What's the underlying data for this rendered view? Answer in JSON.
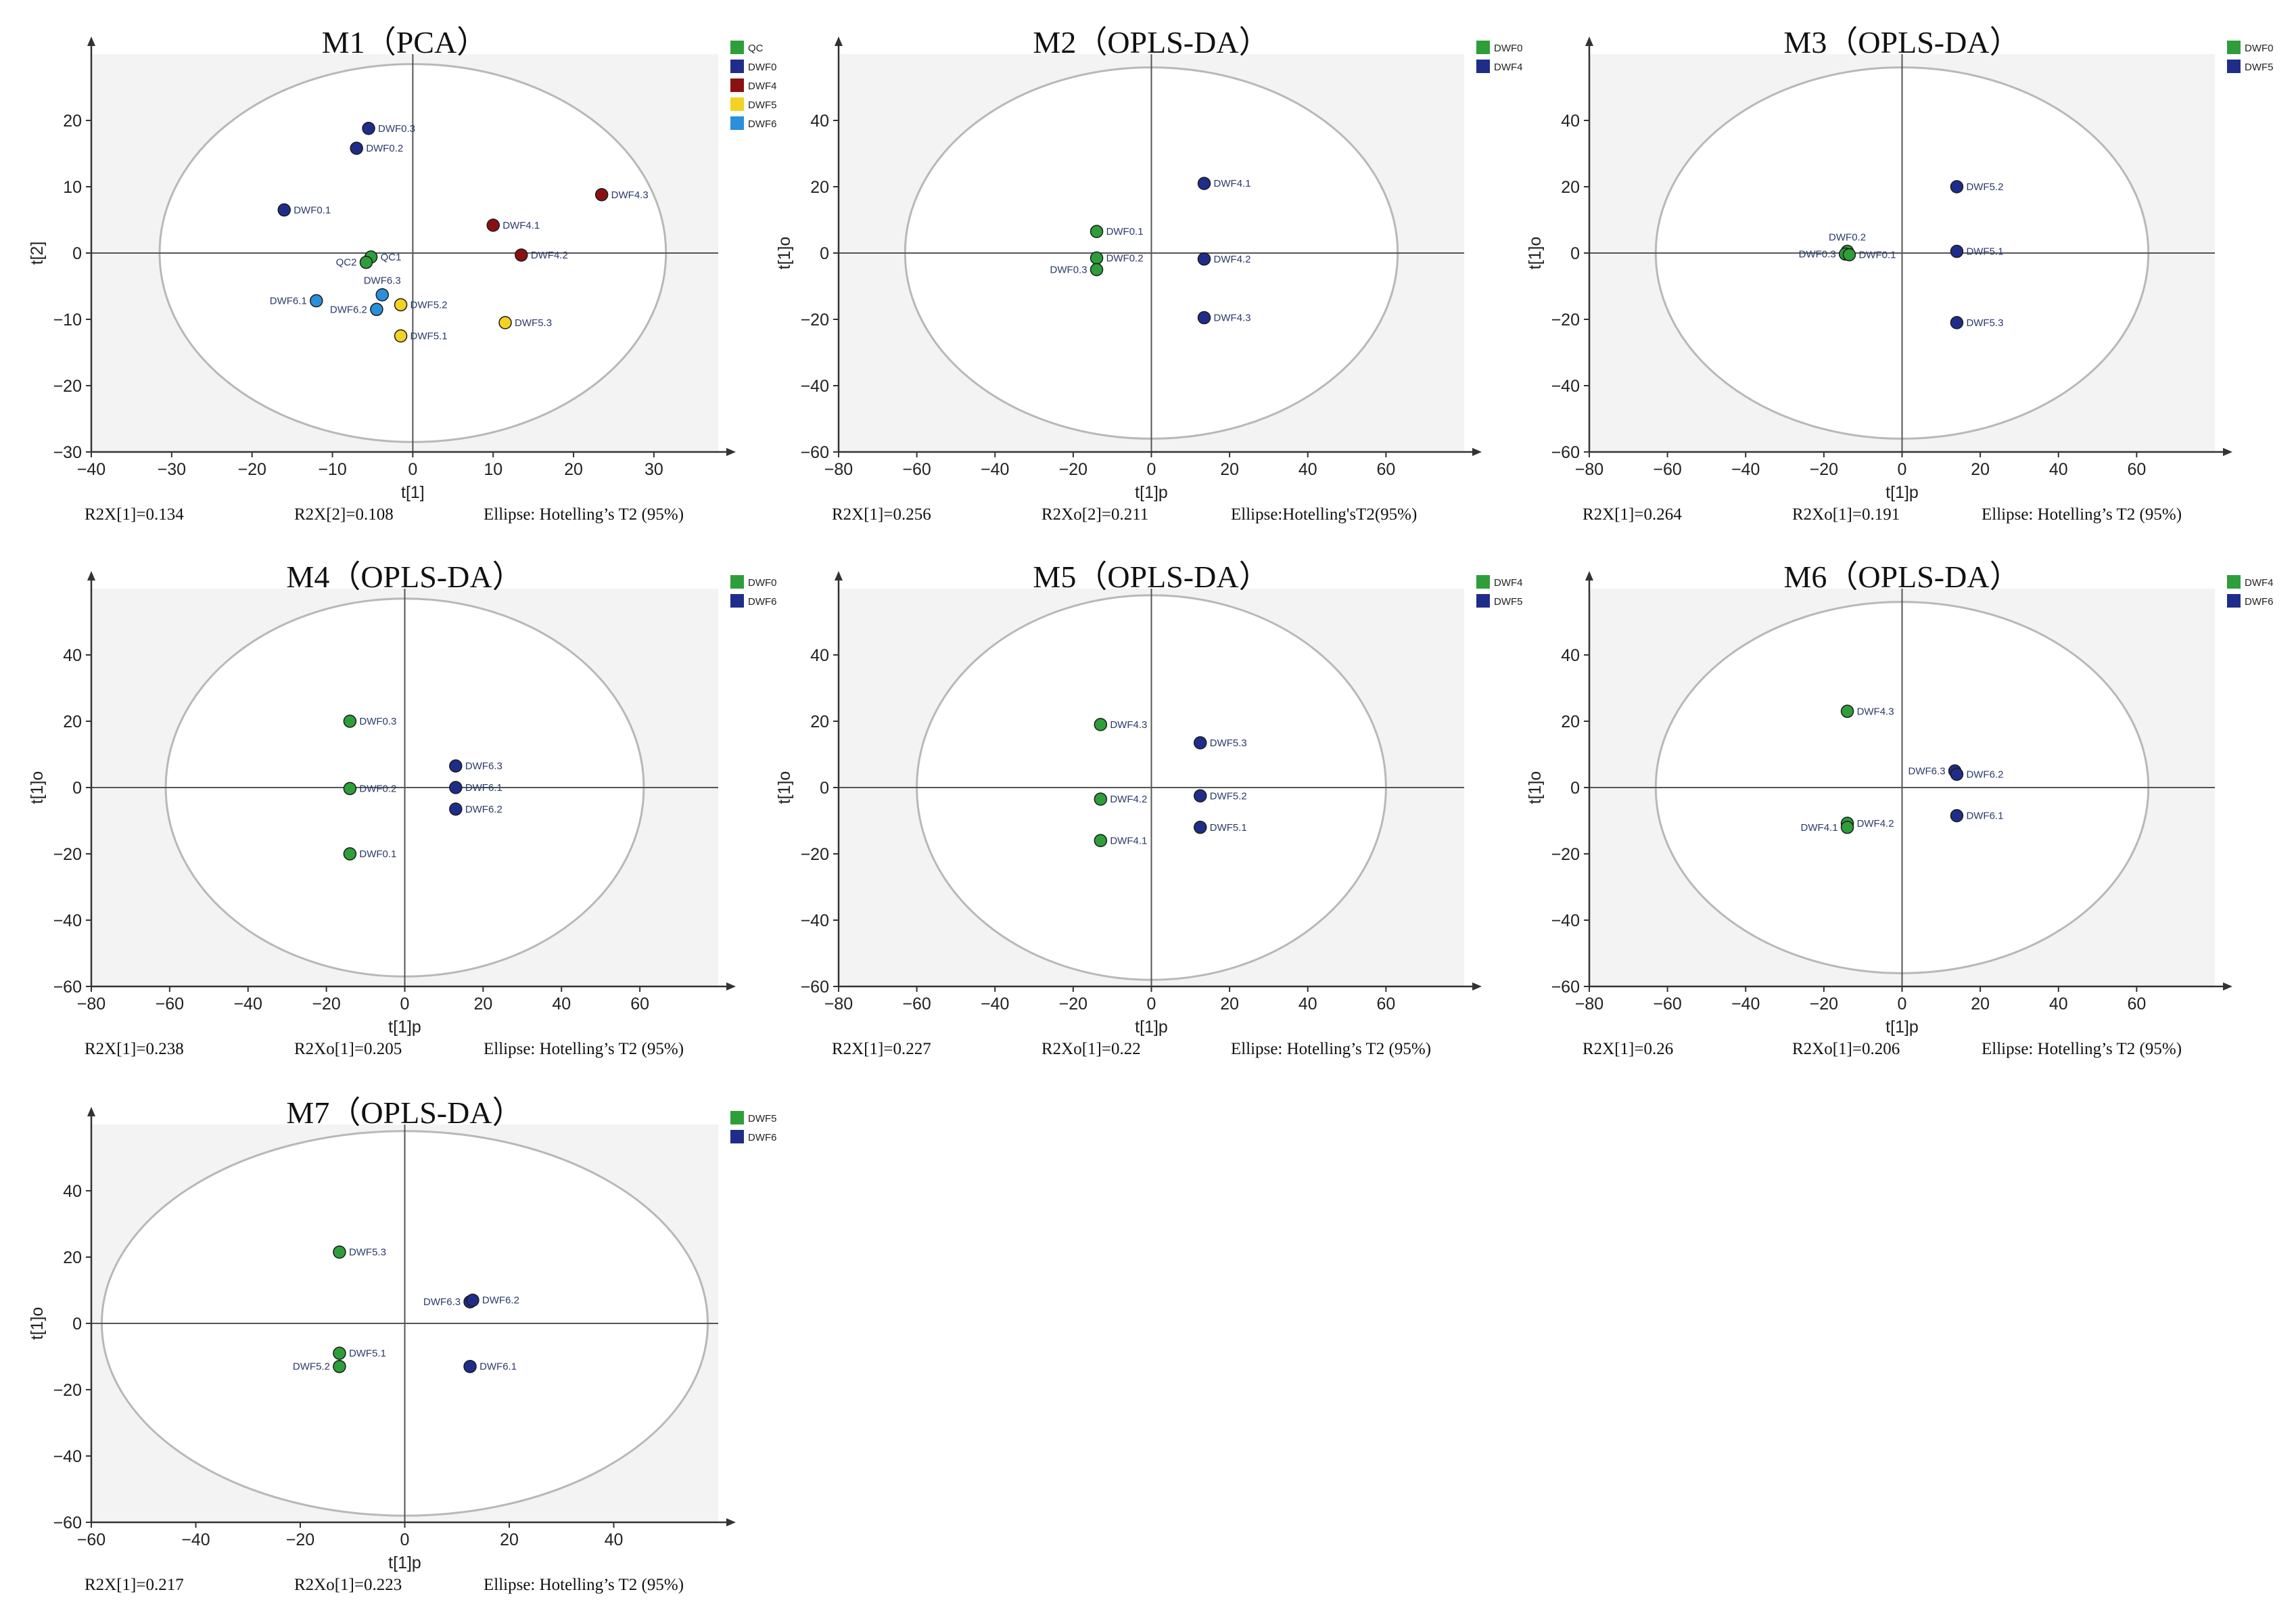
{
  "colors": {
    "QC": "#2e9e3a",
    "DWF0": "#1f2d8a",
    "DWF4": "#8b1111",
    "DWF5": "#f2d224",
    "DWF6": "#2a8fdc",
    "green": "#2e9e3a",
    "navy": "#1f2d8a",
    "plotbg": "#f3f3f3",
    "ellipse": "#b8b8b8",
    "axis": "#555555"
  },
  "chart_data": [
    {
      "id": "M1",
      "type": "scatter",
      "title": "M1（PCA）",
      "xlabel": "t[1]",
      "ylabel": "t[2]",
      "xlim": [
        -40,
        38
      ],
      "ylim": [
        -30,
        30
      ],
      "xticks": [
        -40,
        -30,
        -20,
        -10,
        0,
        10,
        20,
        30
      ],
      "yticks": [
        -30,
        -20,
        -10,
        0,
        10,
        20
      ],
      "ellipse": {
        "rx": 31.5,
        "ry": 28.5
      },
      "legend": [
        {
          "label": "QC",
          "color": "QC"
        },
        {
          "label": "DWF0",
          "color": "DWF0"
        },
        {
          "label": "DWF4",
          "color": "DWF4"
        },
        {
          "label": "DWF5",
          "color": "DWF5"
        },
        {
          "label": "DWF6",
          "color": "DWF6"
        }
      ],
      "footer": [
        "R2X[1]=0.134",
        "R2X[2]=0.108",
        "Ellipse: Hotelling’s  T2  (95%)"
      ],
      "points": [
        {
          "label": "DWF0.3",
          "x": -5.5,
          "y": 18.8,
          "color": "DWF0",
          "side": "right"
        },
        {
          "label": "DWF0.2",
          "x": -7,
          "y": 15.8,
          "color": "DWF0",
          "side": "right"
        },
        {
          "label": "DWF0.1",
          "x": -16,
          "y": 6.5,
          "color": "DWF0",
          "side": "right"
        },
        {
          "label": "DWF4.3",
          "x": 23.5,
          "y": 8.8,
          "color": "DWF4",
          "side": "right"
        },
        {
          "label": "DWF4.1",
          "x": 10,
          "y": 4.2,
          "color": "DWF4",
          "side": "right"
        },
        {
          "label": "DWF4.2",
          "x": 13.5,
          "y": -0.3,
          "color": "DWF4",
          "side": "right"
        },
        {
          "label": "QC1",
          "x": -5.2,
          "y": -0.6,
          "color": "QC",
          "side": "right"
        },
        {
          "label": "QC2",
          "x": -5.8,
          "y": -1.4,
          "color": "QC",
          "side": "left"
        },
        {
          "label": "DWF6.3",
          "x": -3.8,
          "y": -6.3,
          "color": "DWF6",
          "side": "above"
        },
        {
          "label": "DWF6.1",
          "x": -12,
          "y": -7.2,
          "color": "DWF6",
          "side": "left"
        },
        {
          "label": "DWF6.2",
          "x": -4.5,
          "y": -8.5,
          "color": "DWF6",
          "side": "left"
        },
        {
          "label": "DWF5.2",
          "x": -1.5,
          "y": -7.8,
          "color": "DWF5",
          "side": "right"
        },
        {
          "label": "DWF5.3",
          "x": 11.5,
          "y": -10.5,
          "color": "DWF5",
          "side": "right"
        },
        {
          "label": "DWF5.1",
          "x": -1.5,
          "y": -12.5,
          "color": "DWF5",
          "side": "right"
        }
      ]
    },
    {
      "id": "M2",
      "type": "scatter",
      "title": "M2（OPLS-DA）",
      "xlabel": "t[1]p",
      "ylabel": "t[1]o",
      "xlim": [
        -80,
        80
      ],
      "ylim": [
        -60,
        60
      ],
      "xticks": [
        -80,
        -60,
        -40,
        -20,
        0,
        20,
        40,
        60
      ],
      "yticks": [
        -60,
        -40,
        -20,
        0,
        20,
        40
      ],
      "ellipse": {
        "rx": 63,
        "ry": 56
      },
      "legend": [
        {
          "label": "DWF0",
          "color": "green"
        },
        {
          "label": "DWF4",
          "color": "navy"
        }
      ],
      "footer": [
        "R2X[1]=0.256",
        "R2Xo[2]=0.211",
        "Ellipse:Hotelling'sT2(95%)"
      ],
      "points": [
        {
          "label": "DWF0.1",
          "x": -14,
          "y": 6.5,
          "color": "green",
          "side": "right"
        },
        {
          "label": "DWF0.2",
          "x": -14,
          "y": -1.5,
          "color": "green",
          "side": "right"
        },
        {
          "label": "DWF0.3",
          "x": -14,
          "y": -5,
          "color": "green",
          "side": "left"
        },
        {
          "label": "DWF4.1",
          "x": 13.5,
          "y": 21,
          "color": "navy",
          "side": "right"
        },
        {
          "label": "DWF4.2",
          "x": 13.5,
          "y": -1.8,
          "color": "navy",
          "side": "right"
        },
        {
          "label": "DWF4.3",
          "x": 13.5,
          "y": -19.5,
          "color": "navy",
          "side": "right"
        }
      ]
    },
    {
      "id": "M3",
      "type": "scatter",
      "title": "M3（OPLS-DA）",
      "xlabel": "t[1]p",
      "ylabel": "t[1]o",
      "xlim": [
        -80,
        80
      ],
      "ylim": [
        -60,
        60
      ],
      "xticks": [
        -80,
        -60,
        -40,
        -20,
        0,
        20,
        40,
        60
      ],
      "yticks": [
        -60,
        -40,
        -20,
        0,
        20,
        40
      ],
      "ellipse": {
        "rx": 63,
        "ry": 56
      },
      "legend": [
        {
          "label": "DWF0",
          "color": "green"
        },
        {
          "label": "DWF5",
          "color": "navy"
        }
      ],
      "footer": [
        "R2X[1]=0.264",
        "R2Xo[1]=0.191",
        "Ellipse: Hotelling’s  T2  (95%)"
      ],
      "points": [
        {
          "label": "DWF0.2",
          "x": -14,
          "y": 0.5,
          "color": "green",
          "side": "above"
        },
        {
          "label": "DWF0.3",
          "x": -14.5,
          "y": -0.3,
          "color": "green",
          "side": "left"
        },
        {
          "label": "DWF0.1",
          "x": -13.5,
          "y": -0.5,
          "color": "green",
          "side": "right"
        },
        {
          "label": "DWF5.2",
          "x": 14,
          "y": 20,
          "color": "navy",
          "side": "right"
        },
        {
          "label": "DWF5.1",
          "x": 14,
          "y": 0.5,
          "color": "navy",
          "side": "right"
        },
        {
          "label": "DWF5.3",
          "x": 14,
          "y": -21,
          "color": "navy",
          "side": "right"
        }
      ]
    },
    {
      "id": "M4",
      "type": "scatter",
      "title": "M4（OPLS-DA）",
      "xlabel": "t[1]p",
      "ylabel": "t[1]o",
      "xlim": [
        -80,
        80
      ],
      "ylim": [
        -60,
        60
      ],
      "xticks": [
        -80,
        -60,
        -40,
        -20,
        0,
        20,
        40,
        60
      ],
      "yticks": [
        -60,
        -40,
        -20,
        0,
        20,
        40
      ],
      "ellipse": {
        "rx": 61,
        "ry": 57
      },
      "legend": [
        {
          "label": "DWF0",
          "color": "green"
        },
        {
          "label": "DWF6",
          "color": "navy"
        }
      ],
      "footer": [
        "R2X[1]=0.238",
        "R2Xo[1]=0.205",
        "Ellipse: Hotelling’s  T2  (95%)"
      ],
      "points": [
        {
          "label": "DWF0.3",
          "x": -14,
          "y": 20,
          "color": "green",
          "side": "right"
        },
        {
          "label": "DWF0.2",
          "x": -14,
          "y": -0.3,
          "color": "green",
          "side": "right"
        },
        {
          "label": "DWF0.1",
          "x": -14,
          "y": -20,
          "color": "green",
          "side": "right"
        },
        {
          "label": "DWF6.3",
          "x": 13,
          "y": 6.5,
          "color": "navy",
          "side": "right"
        },
        {
          "label": "DWF6.1",
          "x": 13,
          "y": 0,
          "color": "navy",
          "side": "right"
        },
        {
          "label": "DWF6.2",
          "x": 13,
          "y": -6.5,
          "color": "navy",
          "side": "right"
        }
      ]
    },
    {
      "id": "M5",
      "type": "scatter",
      "title": "M5（OPLS-DA）",
      "xlabel": "t[1]p",
      "ylabel": "t[1]o",
      "xlim": [
        -80,
        80
      ],
      "ylim": [
        -60,
        60
      ],
      "xticks": [
        -80,
        -60,
        -40,
        -20,
        0,
        20,
        40,
        60
      ],
      "yticks": [
        -60,
        -40,
        -20,
        0,
        20,
        40
      ],
      "ellipse": {
        "rx": 60,
        "ry": 58
      },
      "legend": [
        {
          "label": "DWF4",
          "color": "green"
        },
        {
          "label": "DWF5",
          "color": "navy"
        }
      ],
      "footer": [
        "R2X[1]=0.227",
        "R2Xo[1]=0.22",
        "Ellipse: Hotelling’s  T2  (95%)"
      ],
      "points": [
        {
          "label": "DWF4.3",
          "x": -13,
          "y": 19,
          "color": "green",
          "side": "right"
        },
        {
          "label": "DWF4.2",
          "x": -13,
          "y": -3.5,
          "color": "green",
          "side": "right"
        },
        {
          "label": "DWF4.1",
          "x": -13,
          "y": -16,
          "color": "green",
          "side": "right"
        },
        {
          "label": "DWF5.3",
          "x": 12.5,
          "y": 13.5,
          "color": "navy",
          "side": "right"
        },
        {
          "label": "DWF5.2",
          "x": 12.5,
          "y": -2.5,
          "color": "navy",
          "side": "right"
        },
        {
          "label": "DWF5.1",
          "x": 12.5,
          "y": -12,
          "color": "navy",
          "side": "right"
        }
      ]
    },
    {
      "id": "M6",
      "type": "scatter",
      "title": "M6（OPLS-DA）",
      "xlabel": "t[1]p",
      "ylabel": "t[1]o",
      "xlim": [
        -80,
        80
      ],
      "ylim": [
        -60,
        60
      ],
      "xticks": [
        -80,
        -60,
        -40,
        -20,
        0,
        20,
        40,
        60
      ],
      "yticks": [
        -60,
        -40,
        -20,
        0,
        20,
        40
      ],
      "ellipse": {
        "rx": 63,
        "ry": 56
      },
      "legend": [
        {
          "label": "DWF4",
          "color": "green"
        },
        {
          "label": "DWF6",
          "color": "navy"
        }
      ],
      "footer": [
        "R2X[1]=0.26",
        "R2Xo[1]=0.206",
        "Ellipse: Hotelling’s  T2  (95%)"
      ],
      "points": [
        {
          "label": "DWF4.3",
          "x": -14,
          "y": 23,
          "color": "green",
          "side": "right"
        },
        {
          "label": "DWF4.2",
          "x": -14,
          "y": -10.8,
          "color": "green",
          "side": "right"
        },
        {
          "label": "DWF4.1",
          "x": -14,
          "y": -12,
          "color": "green",
          "side": "left"
        },
        {
          "label": "DWF6.3",
          "x": 13.5,
          "y": 5,
          "color": "navy",
          "side": "left"
        },
        {
          "label": "DWF6.2",
          "x": 14,
          "y": 4,
          "color": "navy",
          "side": "right"
        },
        {
          "label": "DWF6.1",
          "x": 14,
          "y": -8.5,
          "color": "navy",
          "side": "right"
        }
      ]
    },
    {
      "id": "M7",
      "type": "scatter",
      "title": "M7（OPLS-DA）",
      "xlabel": "t[1]p",
      "ylabel": "t[1]o",
      "xlim": [
        -60,
        60
      ],
      "ylim": [
        -60,
        60
      ],
      "xticks": [
        -60,
        -40,
        -20,
        0,
        20,
        40
      ],
      "yticks": [
        -60,
        -40,
        -20,
        0,
        20,
        40
      ],
      "ellipse": {
        "rx": 58,
        "ry": 58
      },
      "legend": [
        {
          "label": "DWF5",
          "color": "green"
        },
        {
          "label": "DWF6",
          "color": "navy"
        }
      ],
      "footer": [
        "R2X[1]=0.217",
        "R2Xo[1]=0.223",
        "Ellipse: Hotelling’s  T2  (95%)"
      ],
      "points": [
        {
          "label": "DWF5.3",
          "x": -12.5,
          "y": 21.5,
          "color": "green",
          "side": "right"
        },
        {
          "label": "DWF5.1",
          "x": -12.5,
          "y": -9,
          "color": "green",
          "side": "right"
        },
        {
          "label": "DWF5.2",
          "x": -12.5,
          "y": -13,
          "color": "green",
          "side": "left"
        },
        {
          "label": "DWF6.3",
          "x": 12.5,
          "y": 6.5,
          "color": "navy",
          "side": "left"
        },
        {
          "label": "DWF6.2",
          "x": 13,
          "y": 7,
          "color": "navy",
          "side": "right"
        },
        {
          "label": "DWF6.1",
          "x": 12.5,
          "y": -13,
          "color": "navy",
          "side": "right"
        }
      ]
    }
  ]
}
